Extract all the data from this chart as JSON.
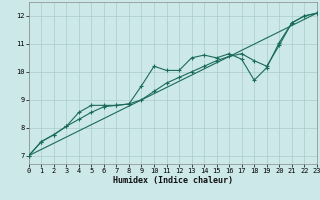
{
  "xlabel": "Humidex (Indice chaleur)",
  "xlim": [
    0,
    23
  ],
  "ylim": [
    6.7,
    12.5
  ],
  "yticks": [
    7,
    8,
    9,
    10,
    11,
    12
  ],
  "xticks": [
    0,
    1,
    2,
    3,
    4,
    5,
    6,
    7,
    8,
    9,
    10,
    11,
    12,
    13,
    14,
    15,
    16,
    17,
    18,
    19,
    20,
    21,
    22,
    23
  ],
  "bg_color": "#cce8e8",
  "grid_color": "#aacccc",
  "line_color": "#1a6b5a",
  "series1": [
    [
      0,
      7.0
    ],
    [
      1,
      7.5
    ],
    [
      2,
      7.75
    ],
    [
      3,
      8.05
    ],
    [
      4,
      8.55
    ],
    [
      5,
      8.8
    ],
    [
      6,
      8.8
    ],
    [
      7,
      8.8
    ],
    [
      8,
      8.85
    ],
    [
      9,
      9.5
    ],
    [
      10,
      10.2
    ],
    [
      11,
      10.05
    ],
    [
      12,
      10.05
    ],
    [
      13,
      10.5
    ],
    [
      14,
      10.6
    ],
    [
      15,
      10.5
    ],
    [
      16,
      10.65
    ],
    [
      17,
      10.45
    ],
    [
      18,
      9.7
    ],
    [
      19,
      10.15
    ],
    [
      20,
      11.05
    ],
    [
      21,
      11.75
    ],
    [
      22,
      12.0
    ],
    [
      23,
      12.1
    ]
  ],
  "series2": [
    [
      0,
      7.0
    ],
    [
      1,
      7.5
    ],
    [
      2,
      7.75
    ],
    [
      3,
      8.05
    ],
    [
      4,
      8.3
    ],
    [
      5,
      8.55
    ],
    [
      6,
      8.75
    ],
    [
      7,
      8.8
    ],
    [
      8,
      8.85
    ],
    [
      9,
      9.0
    ],
    [
      10,
      9.3
    ],
    [
      11,
      9.6
    ],
    [
      12,
      9.8
    ],
    [
      13,
      10.0
    ],
    [
      14,
      10.2
    ],
    [
      15,
      10.4
    ],
    [
      16,
      10.55
    ],
    [
      17,
      10.65
    ],
    [
      18,
      10.4
    ],
    [
      19,
      10.2
    ],
    [
      20,
      10.95
    ],
    [
      21,
      11.75
    ],
    [
      22,
      12.0
    ],
    [
      23,
      12.1
    ]
  ],
  "series3": [
    [
      0,
      7.0
    ],
    [
      23,
      12.1
    ]
  ]
}
